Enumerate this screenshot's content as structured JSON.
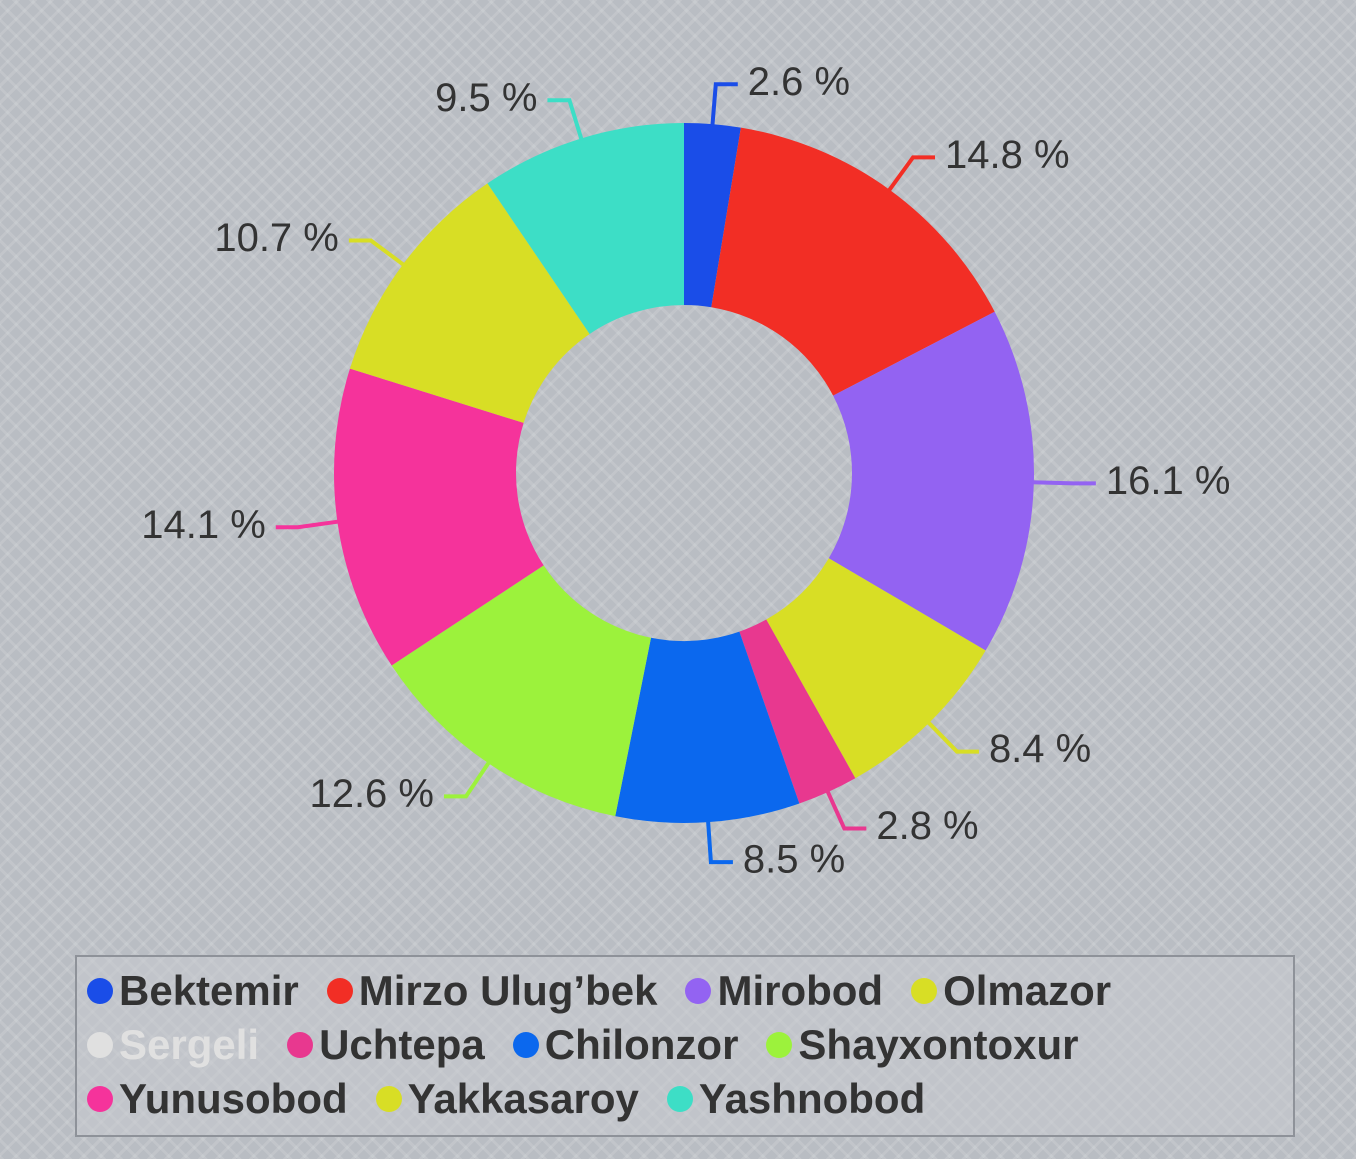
{
  "chart_data": {
    "type": "donut",
    "categories": [
      "Bektemir",
      "Mirzo Ulug’bek",
      "Mirobod",
      "Olmazor",
      "Sergeli",
      "Uchtepa",
      "Chilonzor",
      "Shayxontoxur",
      "Yunusobod",
      "Yakkasaroy",
      "Yashnobod"
    ],
    "values": [
      2.6,
      14.8,
      16.1,
      8.4,
      null,
      2.8,
      8.5,
      12.6,
      14.1,
      10.7,
      9.5
    ],
    "value_labels": [
      "2.6 %",
      "14.8 %",
      "16.1 %",
      "8.4 %",
      null,
      "2.8 %",
      "8.5 %",
      "12.6 %",
      "14.1 %",
      "10.7 %",
      "9.5 %"
    ],
    "colors": [
      "#1a4de8",
      "#f22e25",
      "#9363f2",
      "#d8de25",
      "#e0e0e0",
      "#e8388f",
      "#0b68ee",
      "#9cf23c",
      "#f5339b",
      "#d8de25",
      "#3ddec6"
    ],
    "legend": "bottom"
  }
}
